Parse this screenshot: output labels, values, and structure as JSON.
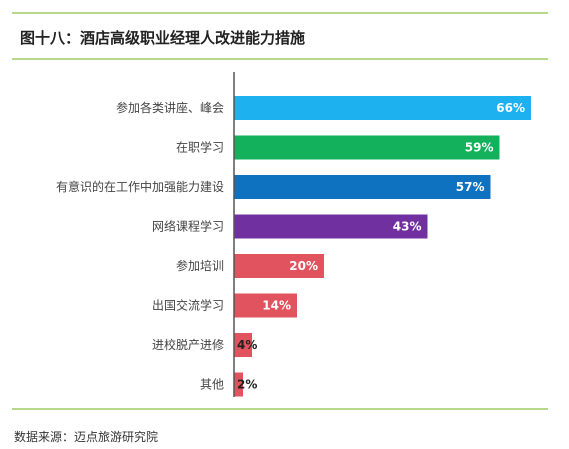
{
  "title": "图十八：酒店高级职业经理人改进能力措施",
  "source": "数据来源：迈点旅游研究院",
  "chart_data": {
    "type": "bar",
    "orientation": "horizontal",
    "title": "图十八：酒店高级职业经理人改进能力措施",
    "categories": [
      "参加各类讲座、峰会",
      "在职学习",
      "有意识的在工作中加强能力建设",
      "网络课程学习",
      "参加培训",
      "出国交流学习",
      "进校脱产进修",
      "其他"
    ],
    "values": [
      66,
      59,
      57,
      43,
      20,
      14,
      4,
      2
    ],
    "value_labels": [
      "66%",
      "59%",
      "57%",
      "43%",
      "20%",
      "14%",
      "4%",
      "2%"
    ],
    "colors": [
      "#1eb1ef",
      "#13b15b",
      "#0f72c0",
      "#7030a0",
      "#e0535f",
      "#e0535f",
      "#e0535f",
      "#e0535f"
    ],
    "xlim": [
      0,
      66
    ],
    "grid": false,
    "legend": "none"
  }
}
